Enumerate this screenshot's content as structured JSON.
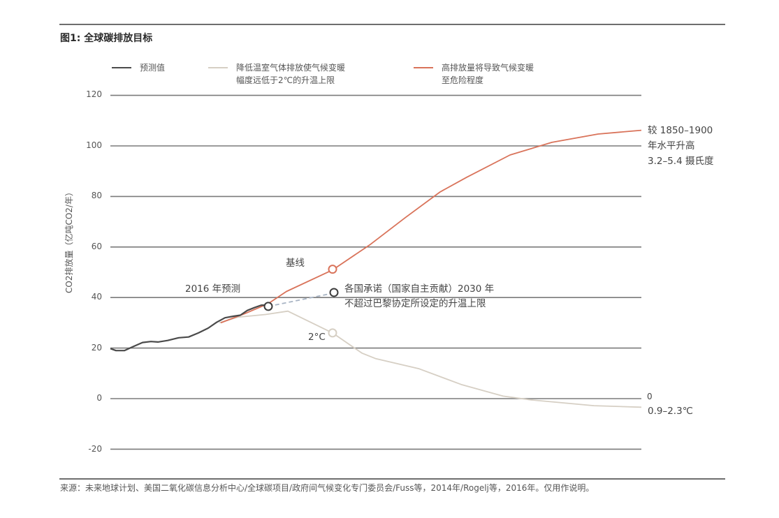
{
  "figure": {
    "title": "图1: 全球碳排放目标",
    "source": "来源：未来地球计划、美国二氧化碳信息分析中心/全球碳项目/政府间气候变化专门委员会/Fuss等，2014年/Rogelj等，2016年。仅用作说明。"
  },
  "legend": [
    {
      "label": "预测值",
      "color": "#4a4a4a"
    },
    {
      "label": "降低温室气体排放使气候变暖\n幅度远低于2℃的升温上限",
      "color": "#d6cfc4"
    },
    {
      "label": "高排放量将导致气候变暖\n至危险程度",
      "color": "#d9735a"
    }
  ],
  "annotations": {
    "forecast_2016": "2016 年预测",
    "baseline": "基线",
    "ndc": "各国承诺（国家自主贡献）2030 年\n不超过巴黎协定所设定的升温上限",
    "two_c": "2°C",
    "high_end": "较 1850–1900\n年水平升高\n3.2–5.4 摄氏度",
    "zero_label": "0",
    "low_end": "0.9–2.3℃"
  },
  "chart_data": {
    "type": "line",
    "title": "图1: 全球碳排放目标",
    "xlabel": "",
    "ylabel": "CO2排放量（亿吨CO2/年）",
    "ylim": [
      -20,
      120
    ],
    "yticks": [
      120,
      100,
      80,
      60,
      40,
      20,
      0,
      -20
    ],
    "grid": true,
    "legend_position": "top",
    "x_note": "Horizontal axis is time (approx. 1960 to 2100); no x tick labels are shown",
    "series": [
      {
        "name": "预测值",
        "color": "#4a4a4a",
        "points": [
          [
            158,
            19.8
          ],
          [
            166,
            19.0
          ],
          [
            178,
            19.0
          ],
          [
            190,
            20.5
          ],
          [
            204,
            22.2
          ],
          [
            216,
            22.6
          ],
          [
            226,
            22.4
          ],
          [
            240,
            23.0
          ],
          [
            256,
            24.1
          ],
          [
            270,
            24.4
          ],
          [
            284,
            26.0
          ],
          [
            298,
            27.9
          ],
          [
            310,
            30.2
          ],
          [
            322,
            32.0
          ],
          [
            334,
            32.6
          ],
          [
            344,
            33.0
          ],
          [
            354,
            34.9
          ],
          [
            364,
            36.0
          ],
          [
            374,
            37.0
          ],
          [
            384,
            37.0
          ]
        ]
      },
      {
        "name": "降低温室气体排放使气候变暖幅度远低于2℃的升温上限",
        "color": "#d6cfc4",
        "points": [
          [
            314,
            30.0
          ],
          [
            340,
            32.2
          ],
          [
            380,
            33.3
          ],
          [
            412,
            34.6
          ],
          [
            476,
            26.0
          ],
          [
            518,
            18.0
          ],
          [
            538,
            15.8
          ],
          [
            600,
            11.8
          ],
          [
            660,
            5.6
          ],
          [
            720,
            1.0
          ],
          [
            760,
            -0.5
          ],
          [
            850,
            -2.8
          ],
          [
            918,
            -3.4
          ]
        ]
      },
      {
        "name": "高排放量将导致气候变暖至危险程度",
        "color": "#d9735a",
        "points": [
          [
            316,
            30.0
          ],
          [
            350,
            33.6
          ],
          [
            384,
            37.6
          ],
          [
            410,
            42.4
          ],
          [
            476,
            50.9
          ],
          [
            530,
            61.0
          ],
          [
            580,
            71.6
          ],
          [
            630,
            81.8
          ],
          [
            668,
            87.6
          ],
          [
            730,
            96.4
          ],
          [
            790,
            101.4
          ],
          [
            856,
            104.7
          ],
          [
            918,
            106.2
          ]
        ]
      },
      {
        "name": "各国承诺（国家自主贡献）",
        "style": "dashed",
        "color": "#a8b4c4",
        "points": [
          [
            384,
            36.5
          ],
          [
            478,
            41.8
          ]
        ]
      }
    ],
    "markers": [
      {
        "label": "2016 年预测",
        "value": 36.5,
        "x": 384
      },
      {
        "label": "基线",
        "value": 51.2,
        "x": 476
      },
      {
        "label": "各国承诺（国家自主贡献）2030 年",
        "value": 42.0,
        "x": 478
      },
      {
        "label": "2°C",
        "value": 26.0,
        "x": 476
      }
    ],
    "end_labels": [
      {
        "series": "高排放量",
        "text": "较 1850–1900 年水平升高 3.2–5.4 摄氏度",
        "value": 106
      },
      {
        "series": "降低温室气体排放",
        "text": "0.9–2.3℃",
        "value": -3.4
      }
    ]
  }
}
